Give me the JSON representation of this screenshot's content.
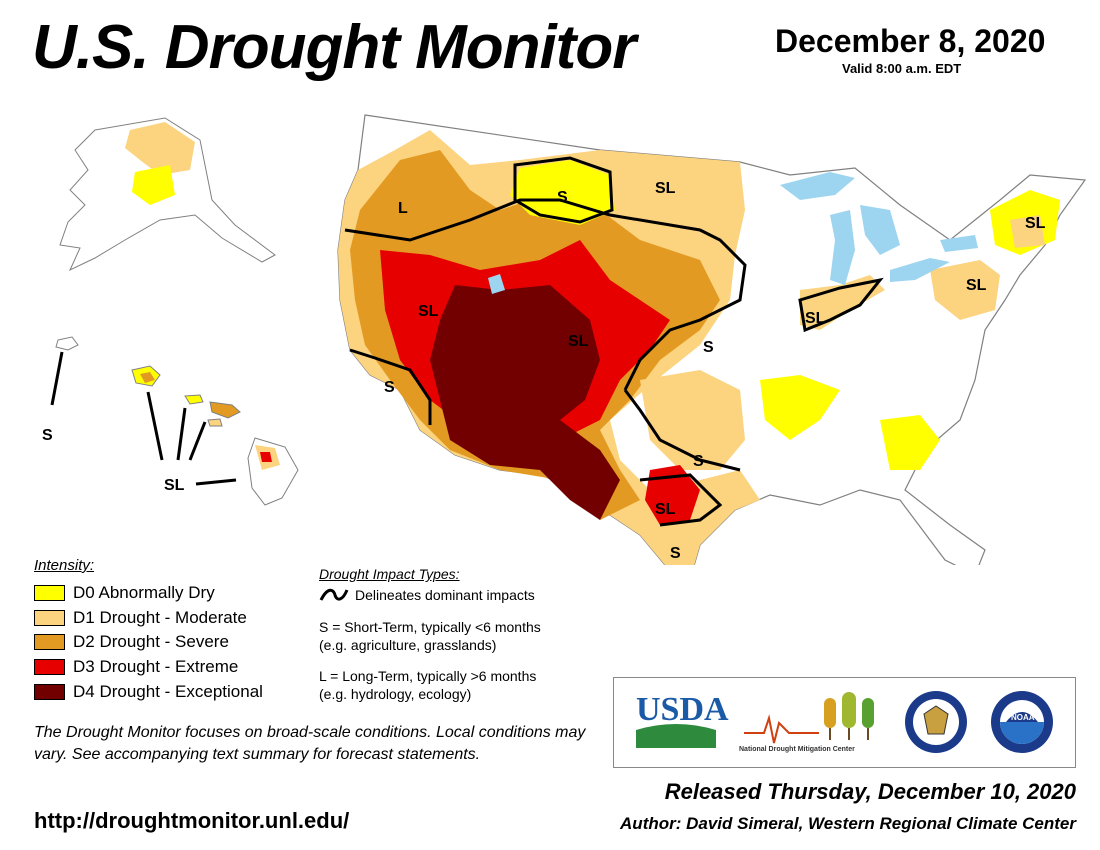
{
  "header": {
    "title": "U.S. Drought Monitor",
    "date": "December 8, 2020",
    "valid": "Valid 8:00 a.m. EDT"
  },
  "colors": {
    "d0": "#ffff00",
    "d1": "#fcd37f",
    "d2": "#e39a22",
    "d3": "#e60000",
    "d4": "#730000",
    "water": "#9dd4ef",
    "state_line": "#808080"
  },
  "legend": {
    "title": "Intensity:",
    "items": [
      {
        "code": "D0",
        "label": "D0 Abnormally Dry"
      },
      {
        "code": "D1",
        "label": "D1 Drought - Moderate"
      },
      {
        "code": "D2",
        "label": "D2 Drought - Severe"
      },
      {
        "code": "D3",
        "label": "D3 Drought - Extreme"
      },
      {
        "code": "D4",
        "label": "D4 Drought - Exceptional"
      }
    ]
  },
  "impacts": {
    "title": "Drought Impact Types:",
    "line": "Delineates dominant impacts",
    "short_term": "S = Short-Term, typically <6 months",
    "short_term_eg": "(e.g. agriculture, grasslands)",
    "long_term": "L = Long-Term, typically >6 months",
    "long_term_eg": "(e.g. hydrology, ecology)"
  },
  "map_labels": {
    "ak_s": "S",
    "hi_sl": "SL",
    "pac_nw_l": "L",
    "mt_s": "S",
    "nd_sl": "SL",
    "ne_sl": "SL",
    "ca_sl": "SL",
    "co_sl": "SL",
    "ks_s": "S",
    "in_sl": "SL",
    "pa_sl": "SL",
    "ca_s": "S",
    "tx_s": "S",
    "tx_sl": "SL",
    "tx_s2": "S"
  },
  "disclaimer": "The Drought Monitor focuses on broad-scale conditions. Local conditions may vary. See accompanying text summary for forecast statements.",
  "url": "http://droughtmonitor.unl.edu/",
  "released": "Released Thursday, December 10, 2020",
  "author": "Author: David Simeral, Western Regional Climate Center",
  "logos": {
    "usda": "USDA",
    "ndmc": "National Drought Mitigation Center",
    "noaa": "NOAA"
  }
}
